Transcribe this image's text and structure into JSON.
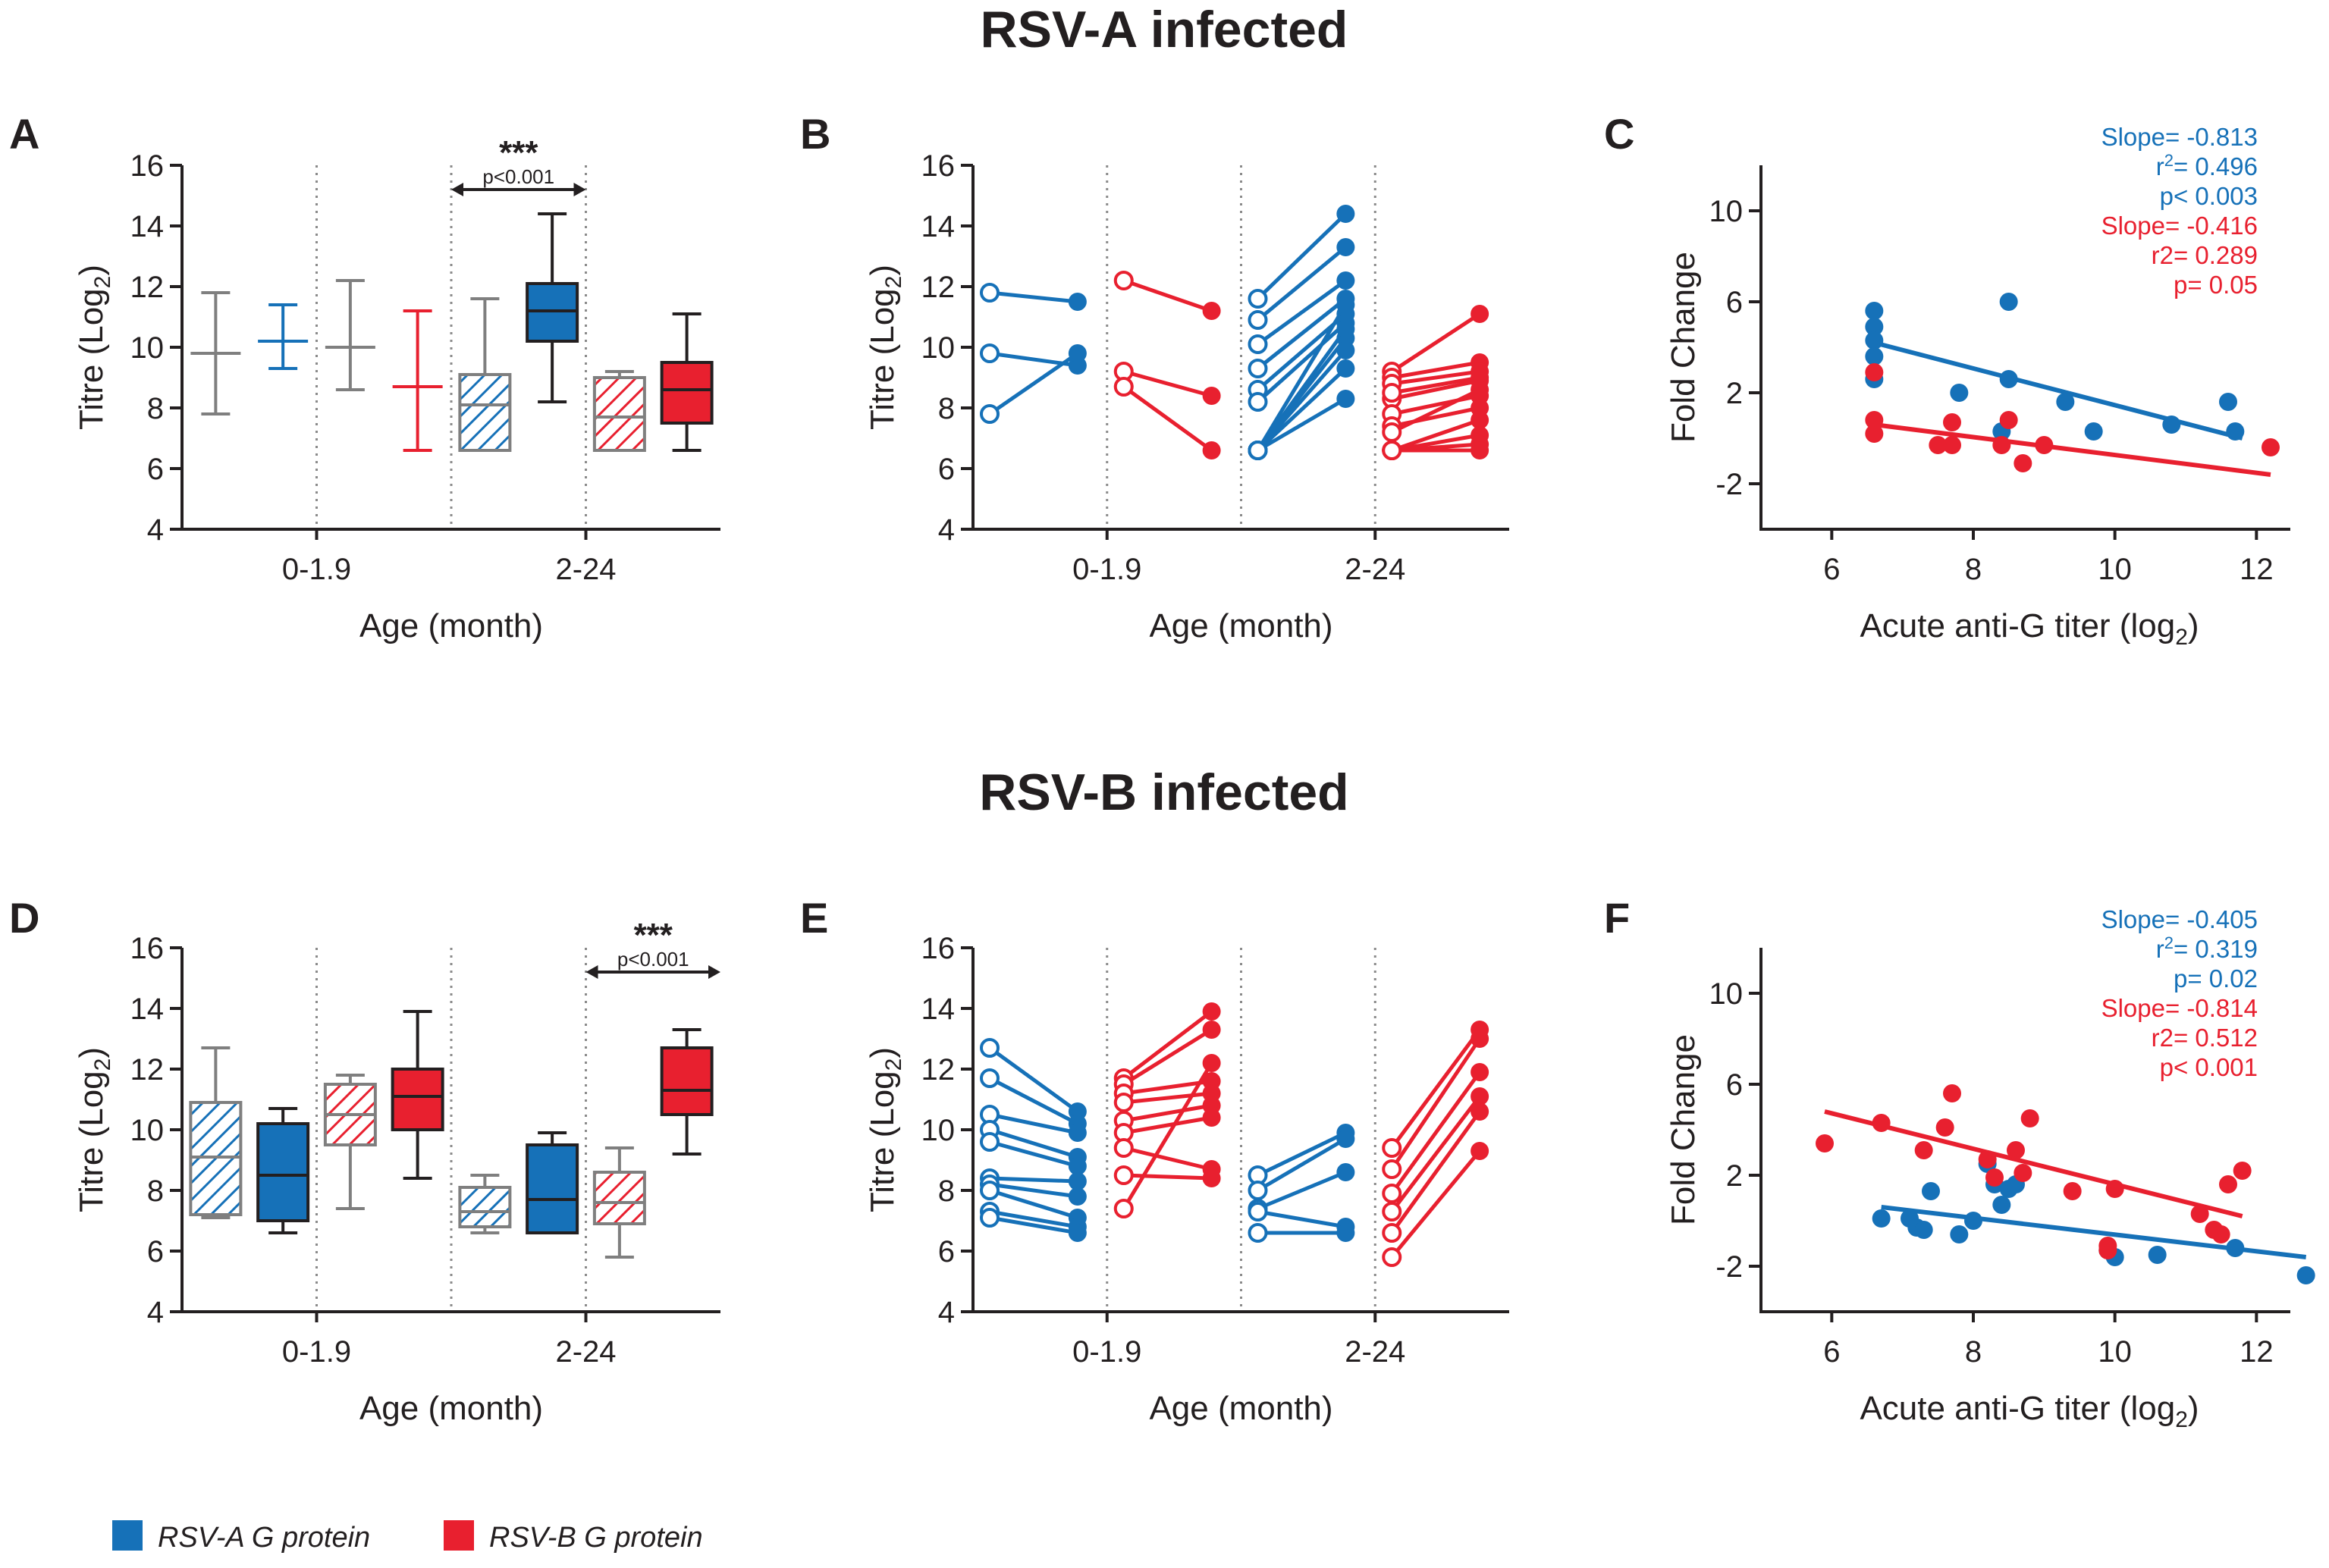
{
  "colors": {
    "blue": "#1671b8",
    "red": "#e8202f",
    "gray": "#7f7f7f",
    "dark": "#231f20"
  },
  "legend": [
    {
      "label": "RSV-A G protein",
      "color": "#1671b8"
    },
    {
      "label": "RSV-B G protein",
      "color": "#e8202f"
    }
  ],
  "chart_data": [
    {
      "panel": "A",
      "row_title": "RSV-A infected",
      "type": "box",
      "ylabel": "Titre (Log",
      "ylabel_sub": "2",
      "ylabel_end": ")",
      "xlabel": "Age (month)",
      "ylim": [
        4,
        16
      ],
      "yticks": [
        4,
        6,
        8,
        10,
        12,
        14,
        16
      ],
      "groups": [
        "0-1.9",
        "2-24"
      ],
      "significance": {
        "stars": "***",
        "p": "p<0.001",
        "from_box": 4,
        "to_box": 5
      },
      "boxes": [
        {
          "group": "0-1.9",
          "series": "RSV-A G protein",
          "phase": "acute",
          "style": "whisker-only",
          "color": "gray",
          "min": 7.8,
          "q1": 9.8,
          "median": 9.8,
          "q3": 9.8,
          "max": 11.8
        },
        {
          "group": "0-1.9",
          "series": "RSV-A G protein",
          "phase": "convalescent",
          "style": "whisker-only",
          "color": "blue",
          "min": 9.3,
          "q1": 10.2,
          "median": 10.2,
          "q3": 10.2,
          "max": 11.4
        },
        {
          "group": "0-1.9",
          "series": "RSV-B G protein",
          "phase": "acute",
          "style": "whisker-only",
          "color": "gray",
          "min": 8.6,
          "q1": 10.0,
          "median": 10.0,
          "q3": 10.0,
          "max": 12.2
        },
        {
          "group": "0-1.9",
          "series": "RSV-B G protein",
          "phase": "convalescent",
          "style": "whisker-only",
          "color": "red",
          "min": 6.6,
          "q1": 8.7,
          "median": 8.7,
          "q3": 8.7,
          "max": 11.2
        },
        {
          "group": "2-24",
          "series": "RSV-A G protein",
          "phase": "acute",
          "style": "hatched",
          "color": "blue",
          "min": 6.6,
          "q1": 6.6,
          "median": 8.1,
          "q3": 9.1,
          "max": 11.6
        },
        {
          "group": "2-24",
          "series": "RSV-A G protein",
          "phase": "convalescent",
          "style": "solid",
          "color": "blue",
          "min": 8.2,
          "q1": 10.2,
          "median": 11.2,
          "q3": 12.1,
          "max": 14.4
        },
        {
          "group": "2-24",
          "series": "RSV-B G protein",
          "phase": "acute",
          "style": "hatched",
          "color": "red",
          "min": 6.6,
          "q1": 6.6,
          "median": 7.7,
          "q3": 9.0,
          "max": 9.2
        },
        {
          "group": "2-24",
          "series": "RSV-B G protein",
          "phase": "convalescent",
          "style": "solid",
          "color": "red",
          "min": 6.6,
          "q1": 7.5,
          "median": 8.6,
          "q3": 9.5,
          "max": 11.1
        }
      ]
    },
    {
      "panel": "B",
      "type": "paired-line",
      "ylabel": "Titre (Log",
      "ylabel_sub": "2",
      "ylabel_end": ")",
      "xlabel": "Age (month)",
      "ylim": [
        4,
        16
      ],
      "yticks": [
        4,
        6,
        8,
        10,
        12,
        14,
        16
      ],
      "groups": [
        "0-1.9",
        "2-24"
      ],
      "pairs": [
        {
          "group": "0-1.9",
          "series": "RSV-A G protein",
          "color": "blue",
          "acute": [
            11.8,
            9.8,
            7.8
          ],
          "conv": [
            11.5,
            9.4,
            9.8
          ]
        },
        {
          "group": "0-1.9",
          "series": "RSV-B G protein",
          "color": "red",
          "acute": [
            12.2,
            9.2,
            8.7
          ],
          "conv": [
            11.2,
            8.4,
            6.6
          ]
        },
        {
          "group": "2-24",
          "series": "RSV-A G protein",
          "color": "blue",
          "acute": [
            11.6,
            10.9,
            10.1,
            9.3,
            8.6,
            8.2,
            6.6,
            6.6,
            6.6,
            6.6,
            6.6,
            6.6
          ],
          "conv": [
            14.4,
            13.3,
            12.2,
            11.6,
            11.1,
            10.8,
            10.3,
            9.9,
            9.3,
            8.3,
            11.4,
            10.6
          ]
        },
        {
          "group": "2-24",
          "series": "RSV-B G protein",
          "color": "red",
          "acute": [
            9.2,
            9.0,
            8.8,
            8.3,
            7.8,
            7.4,
            6.6,
            6.6,
            6.6,
            6.6,
            8.5,
            7.2
          ],
          "conv": [
            11.1,
            9.5,
            9.2,
            8.9,
            8.4,
            8.0,
            7.6,
            7.1,
            6.8,
            6.6,
            9.0,
            8.6
          ]
        }
      ]
    },
    {
      "panel": "C",
      "type": "scatter",
      "ylabel": "Fold Change",
      "xlabel": "Acute anti-G titer (log",
      "xlabel_sub": "2",
      "xlabel_end": ")",
      "xlim": [
        5,
        12.8
      ],
      "ylim": [
        -4,
        12
      ],
      "xticks": [
        6,
        8,
        10,
        12
      ],
      "yticks": [
        -2,
        2,
        6,
        10
      ],
      "series": [
        {
          "name": "RSV-A G protein",
          "color": "blue",
          "points": [
            [
              6.6,
              5.6
            ],
            [
              6.6,
              4.9
            ],
            [
              6.6,
              4.3
            ],
            [
              6.6,
              3.6
            ],
            [
              6.6,
              2.6
            ],
            [
              7.8,
              2.0
            ],
            [
              8.5,
              6.0
            ],
            [
              8.5,
              2.6
            ],
            [
              8.4,
              0.3
            ],
            [
              9.3,
              1.6
            ],
            [
              9.7,
              0.3
            ],
            [
              10.8,
              0.6
            ],
            [
              11.6,
              1.6
            ],
            [
              11.7,
              0.3
            ]
          ],
          "fit": [
            [
              6.6,
              4.2
            ],
            [
              11.8,
              0.0
            ]
          ],
          "stats": [
            "Slope= -0.813",
            "r",
            "2",
            "= 0.496",
            "p< 0.003"
          ]
        },
        {
          "name": "RSV-B G protein",
          "color": "red",
          "points": [
            [
              6.6,
              2.9
            ],
            [
              6.6,
              0.8
            ],
            [
              6.6,
              0.2
            ],
            [
              7.5,
              -0.3
            ],
            [
              7.7,
              0.7
            ],
            [
              7.7,
              -0.3
            ],
            [
              8.5,
              0.8
            ],
            [
              8.4,
              -0.3
            ],
            [
              9.0,
              -0.3
            ],
            [
              8.7,
              -1.1
            ],
            [
              12.2,
              -0.4
            ]
          ],
          "fit": [
            [
              6.6,
              0.6
            ],
            [
              12.2,
              -1.6
            ]
          ],
          "stats": [
            "Slope= -0.416",
            "r2= 0.289",
            "p= 0.05"
          ]
        }
      ]
    },
    {
      "panel": "D",
      "row_title": "RSV-B infected",
      "type": "box",
      "ylabel": "Titre (Log",
      "ylabel_sub": "2",
      "ylabel_end": ")",
      "xlabel": "Age (month)",
      "ylim": [
        4,
        16
      ],
      "yticks": [
        4,
        6,
        8,
        10,
        12,
        14,
        16
      ],
      "groups": [
        "0-1.9",
        "2-24"
      ],
      "significance": {
        "stars": "***",
        "p": "p<0.001",
        "from_box": 6,
        "to_box": 7
      },
      "boxes": [
        {
          "group": "0-1.9",
          "series": "RSV-A G protein",
          "phase": "acute",
          "style": "hatched",
          "color": "blue",
          "min": 7.1,
          "q1": 7.2,
          "median": 9.1,
          "q3": 10.9,
          "max": 12.7
        },
        {
          "group": "0-1.9",
          "series": "RSV-A G protein",
          "phase": "convalescent",
          "style": "solid",
          "color": "blue",
          "min": 6.6,
          "q1": 7.0,
          "median": 8.5,
          "q3": 10.2,
          "max": 10.7
        },
        {
          "group": "0-1.9",
          "series": "RSV-B G protein",
          "phase": "acute",
          "style": "hatched",
          "color": "red",
          "min": 7.4,
          "q1": 9.5,
          "median": 10.5,
          "q3": 11.5,
          "max": 11.8
        },
        {
          "group": "0-1.9",
          "series": "RSV-B G protein",
          "phase": "convalescent",
          "style": "solid",
          "color": "red",
          "min": 8.4,
          "q1": 10.0,
          "median": 11.1,
          "q3": 12.0,
          "max": 13.9
        },
        {
          "group": "2-24",
          "series": "RSV-A G protein",
          "phase": "acute",
          "style": "hatched",
          "color": "blue",
          "min": 6.6,
          "q1": 6.8,
          "median": 7.3,
          "q3": 8.1,
          "max": 8.5
        },
        {
          "group": "2-24",
          "series": "RSV-A G protein",
          "phase": "convalescent",
          "style": "solid",
          "color": "blue",
          "min": 6.6,
          "q1": 6.6,
          "median": 7.7,
          "q3": 9.5,
          "max": 9.9
        },
        {
          "group": "2-24",
          "series": "RSV-B G protein",
          "phase": "acute",
          "style": "hatched",
          "color": "red",
          "min": 5.8,
          "q1": 6.9,
          "median": 7.6,
          "q3": 8.6,
          "max": 9.4
        },
        {
          "group": "2-24",
          "series": "RSV-B G protein",
          "phase": "convalescent",
          "style": "solid",
          "color": "red",
          "min": 9.2,
          "q1": 10.5,
          "median": 11.3,
          "q3": 12.7,
          "max": 13.3
        }
      ]
    },
    {
      "panel": "E",
      "type": "paired-line",
      "ylabel": "Titre (Log",
      "ylabel_sub": "2",
      "ylabel_end": ")",
      "xlabel": "Age (month)",
      "ylim": [
        4,
        16
      ],
      "yticks": [
        4,
        6,
        8,
        10,
        12,
        14,
        16
      ],
      "groups": [
        "0-1.9",
        "2-24"
      ],
      "pairs": [
        {
          "group": "0-1.9",
          "series": "RSV-A G protein",
          "color": "blue",
          "acute": [
            12.7,
            11.7,
            10.5,
            10.0,
            9.6,
            8.4,
            8.2,
            8.0,
            7.3,
            7.1
          ],
          "conv": [
            10.6,
            10.2,
            9.9,
            9.1,
            8.8,
            8.3,
            7.8,
            7.1,
            6.8,
            6.6
          ]
        },
        {
          "group": "0-1.9",
          "series": "RSV-B G protein",
          "color": "red",
          "acute": [
            11.7,
            11.5,
            11.2,
            10.9,
            10.3,
            9.9,
            9.4,
            8.5,
            7.4
          ],
          "conv": [
            13.9,
            13.3,
            11.6,
            11.2,
            10.8,
            10.4,
            8.7,
            8.4,
            12.2
          ]
        },
        {
          "group": "2-24",
          "series": "RSV-A G protein",
          "color": "blue",
          "acute": [
            8.5,
            8.0,
            7.4,
            7.3,
            6.6
          ],
          "conv": [
            9.9,
            9.7,
            8.6,
            6.8,
            6.6
          ]
        },
        {
          "group": "2-24",
          "series": "RSV-B G protein",
          "color": "red",
          "acute": [
            9.4,
            8.7,
            7.9,
            7.3,
            6.6,
            5.8
          ],
          "conv": [
            13.3,
            13.0,
            11.9,
            11.1,
            10.6,
            9.3
          ]
        }
      ]
    },
    {
      "panel": "F",
      "type": "scatter",
      "ylabel": "Fold Change",
      "xlabel": "Acute anti-G titer (log",
      "xlabel_sub": "2",
      "xlabel_end": ")",
      "xlim": [
        5,
        12.8
      ],
      "ylim": [
        -4,
        12
      ],
      "xticks": [
        6,
        8,
        10,
        12
      ],
      "yticks": [
        -2,
        2,
        6,
        10
      ],
      "series": [
        {
          "name": "RSV-A G protein",
          "color": "blue",
          "points": [
            [
              6.7,
              0.1
            ],
            [
              7.1,
              0.1
            ],
            [
              7.2,
              -0.3
            ],
            [
              7.3,
              -0.4
            ],
            [
              7.4,
              1.3
            ],
            [
              7.8,
              -0.6
            ],
            [
              8.0,
              0.0
            ],
            [
              8.2,
              2.5
            ],
            [
              8.3,
              1.6
            ],
            [
              8.5,
              1.4
            ],
            [
              8.4,
              0.7
            ],
            [
              8.6,
              1.6
            ],
            [
              9.9,
              -1.3
            ],
            [
              10.0,
              -1.6
            ],
            [
              10.6,
              -1.5
            ],
            [
              11.7,
              -1.2
            ],
            [
              12.7,
              -2.4
            ]
          ],
          "fit": [
            [
              6.7,
              0.6
            ],
            [
              12.7,
              -1.6
            ]
          ],
          "stats": [
            "Slope= -0.405",
            "r",
            "2",
            "= 0.319",
            "p= 0.02"
          ]
        },
        {
          "name": "RSV-B G protein",
          "color": "red",
          "points": [
            [
              5.9,
              3.4
            ],
            [
              6.7,
              4.3
            ],
            [
              7.3,
              3.1
            ],
            [
              7.6,
              4.1
            ],
            [
              7.7,
              5.6
            ],
            [
              8.2,
              2.7
            ],
            [
              8.3,
              1.9
            ],
            [
              8.6,
              3.1
            ],
            [
              8.7,
              2.1
            ],
            [
              8.8,
              4.5
            ],
            [
              9.4,
              1.3
            ],
            [
              9.9,
              -1.1
            ],
            [
              9.9,
              -1.3
            ],
            [
              10.0,
              1.4
            ],
            [
              11.2,
              0.3
            ],
            [
              11.4,
              -0.4
            ],
            [
              11.5,
              -0.6
            ],
            [
              11.6,
              1.6
            ],
            [
              11.8,
              2.2
            ]
          ],
          "fit": [
            [
              5.9,
              4.8
            ],
            [
              11.8,
              0.2
            ]
          ],
          "stats": [
            "Slope= -0.814",
            "r2= 0.512",
            "p< 0.001"
          ]
        }
      ]
    }
  ]
}
